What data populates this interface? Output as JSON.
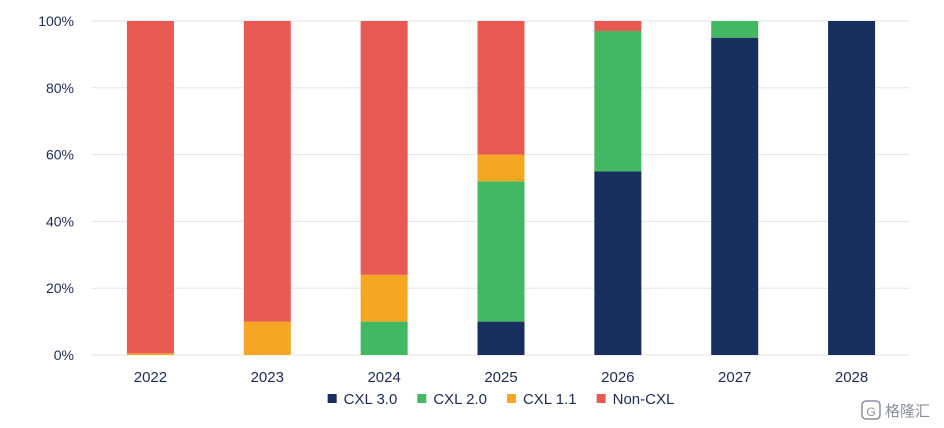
{
  "chart_data": {
    "type": "bar",
    "stacked": true,
    "categories": [
      "2022",
      "2023",
      "2024",
      "2025",
      "2026",
      "2027",
      "2028"
    ],
    "series": [
      {
        "name": "CXL 3.0",
        "color": "#162f5e",
        "values": [
          0,
          0,
          0,
          10,
          55,
          95,
          100
        ]
      },
      {
        "name": "CXL 2.0",
        "color": "#43b863",
        "values": [
          0,
          0,
          10,
          42,
          42,
          5,
          0
        ]
      },
      {
        "name": "CXL 1.1",
        "color": "#f5a623",
        "values": [
          0.5,
          10,
          14,
          8,
          0,
          0,
          0
        ]
      },
      {
        "name": "Non-CXL",
        "color": "#e85a52",
        "values": [
          99.5,
          90,
          76,
          40,
          3,
          0,
          0
        ]
      }
    ],
    "y_ticks": [
      "0%",
      "20%",
      "40%",
      "60%",
      "80%",
      "100%"
    ],
    "ylim": [
      0,
      100
    ],
    "grid": true,
    "legend_position": "bottom-center"
  },
  "watermark": {
    "text": "格隆汇",
    "logo_letter": "G"
  }
}
